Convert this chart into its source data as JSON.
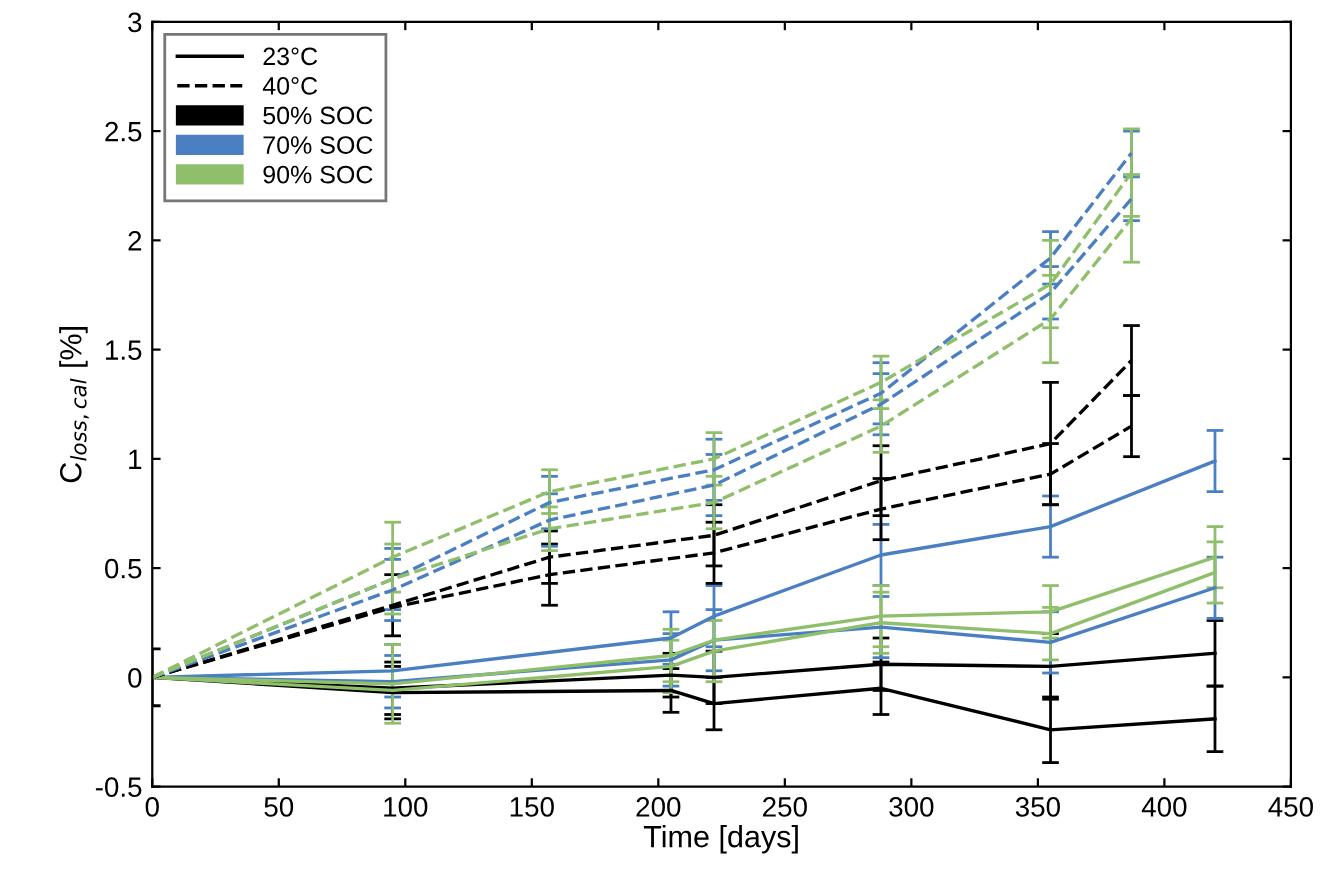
{
  "chart_data": {
    "type": "line",
    "xlabel": "Time [days]",
    "ylabel": "C$_{loss,cal}$ [%]",
    "xlim": [
      0,
      450
    ],
    "xticks": [
      0,
      50,
      100,
      150,
      200,
      250,
      300,
      350,
      400,
      450
    ],
    "ylim": [
      -0.5,
      3
    ],
    "yticks": [
      -0.5,
      0,
      0.5,
      1,
      1.5,
      2,
      2.5,
      3
    ],
    "legend": "top left",
    "grid": false,
    "marker": "none",
    "annotations": [
      "23°C",
      "40°C"
    ],
    "series": [
      {
        "name": "50% SOC",
        "color": "#000000",
        "line_style": "solid",
        "x": [
          0,
          95,
          205,
          222,
          288,
          355,
          420
        ],
        "values": [
          0,
          -0.05,
          0.01,
          0.0,
          0.06,
          0.05,
          0.11
        ],
        "errors": [
          0.13,
          0.12,
          0.1,
          0.12,
          0.12,
          0.15,
          0.15
        ]
      },
      {
        "color": "#000000",
        "line_style": "solid",
        "x": [
          0,
          95,
          205,
          222,
          288,
          355,
          420
        ],
        "values": [
          0,
          -0.07,
          -0.06,
          -0.12,
          -0.05,
          -0.24,
          -0.19
        ],
        "errors": [
          null,
          0.12,
          0.1,
          0.12,
          0.12,
          0.15,
          0.15
        ]
      },
      {
        "name": "70% SOC",
        "color": "#4a7fc1",
        "line_style": "solid",
        "x": [
          0,
          95,
          205,
          222,
          288,
          355,
          420
        ],
        "values": [
          0,
          0.03,
          0.18,
          0.28,
          0.56,
          0.69,
          0.99
        ],
        "errors": [
          null,
          0.12,
          0.12,
          0.14,
          0.14,
          0.14,
          0.14
        ]
      },
      {
        "color": "#4a7fc1",
        "line_style": "solid",
        "x": [
          0,
          95,
          205,
          222,
          288,
          355,
          420
        ],
        "values": [
          0,
          -0.02,
          0.08,
          0.17,
          0.23,
          0.16,
          0.41
        ],
        "errors": [
          null,
          0.12,
          0.12,
          0.14,
          0.14,
          0.14,
          0.14
        ]
      },
      {
        "name": "90% SOC",
        "color": "#8fbf6a",
        "line_style": "solid",
        "x": [
          0,
          95,
          205,
          222,
          288,
          355,
          420
        ],
        "values": [
          0,
          -0.03,
          0.1,
          0.17,
          0.28,
          0.3,
          0.55
        ],
        "errors": [
          null,
          0.18,
          0.12,
          null,
          0.14,
          0.12,
          0.14
        ]
      },
      {
        "color": "#8fbf6a",
        "line_style": "solid",
        "x": [
          0,
          95,
          205,
          222,
          288,
          355,
          420
        ],
        "values": [
          0,
          -0.06,
          0.05,
          0.12,
          0.25,
          0.2,
          0.48
        ],
        "errors": [
          null,
          null,
          0.12,
          0.14,
          0.14,
          0.12,
          0.14
        ]
      },
      {
        "color": "#000000",
        "line_style": "dashed",
        "x": [
          0,
          95,
          157,
          222,
          288,
          355,
          387
        ],
        "values": [
          0,
          0.33,
          0.55,
          0.65,
          0.9,
          1.07,
          1.45
        ],
        "errors": [
          null,
          0.14,
          0.12,
          0.14,
          0.16,
          0.28,
          0.16
        ]
      },
      {
        "color": "#000000",
        "line_style": "dashed",
        "x": [
          0,
          95,
          157,
          222,
          288,
          355,
          387
        ],
        "values": [
          0,
          0.32,
          0.47,
          0.57,
          0.77,
          0.93,
          1.15
        ],
        "errors": [
          null,
          null,
          0.14,
          0.14,
          0.14,
          0.14,
          0.14
        ]
      },
      {
        "color": "#4a7fc1",
        "line_style": "dashed",
        "x": [
          0,
          95,
          157,
          222,
          288,
          355,
          387
        ],
        "values": [
          0,
          0.45,
          0.8,
          0.95,
          1.3,
          1.92,
          2.4
        ],
        "errors": [
          null,
          0.14,
          0.12,
          0.14,
          0.14,
          0.12,
          0.1
        ]
      },
      {
        "color": "#4a7fc1",
        "line_style": "dashed",
        "x": [
          0,
          95,
          157,
          222,
          288,
          355,
          387
        ],
        "values": [
          0,
          0.4,
          0.72,
          0.88,
          1.25,
          1.76,
          2.19
        ],
        "errors": [
          null,
          0.14,
          0.12,
          0.14,
          0.14,
          0.12,
          0.1
        ]
      },
      {
        "color": "#8fbf6a",
        "line_style": "dashed",
        "x": [
          0,
          95,
          157,
          222,
          288,
          355,
          387
        ],
        "values": [
          0,
          0.55,
          0.85,
          1.0,
          1.35,
          1.8,
          2.31
        ],
        "errors": [
          null,
          0.16,
          0.1,
          0.12,
          0.12,
          0.2,
          0.2
        ]
      },
      {
        "color": "#8fbf6a",
        "line_style": "dashed",
        "x": [
          0,
          95,
          157,
          222,
          288,
          355,
          387
        ],
        "values": [
          0,
          0.45,
          0.68,
          0.8,
          1.15,
          1.64,
          2.1
        ],
        "errors": [
          null,
          0.16,
          0.1,
          0.12,
          0.12,
          0.2,
          0.2
        ]
      }
    ]
  }
}
